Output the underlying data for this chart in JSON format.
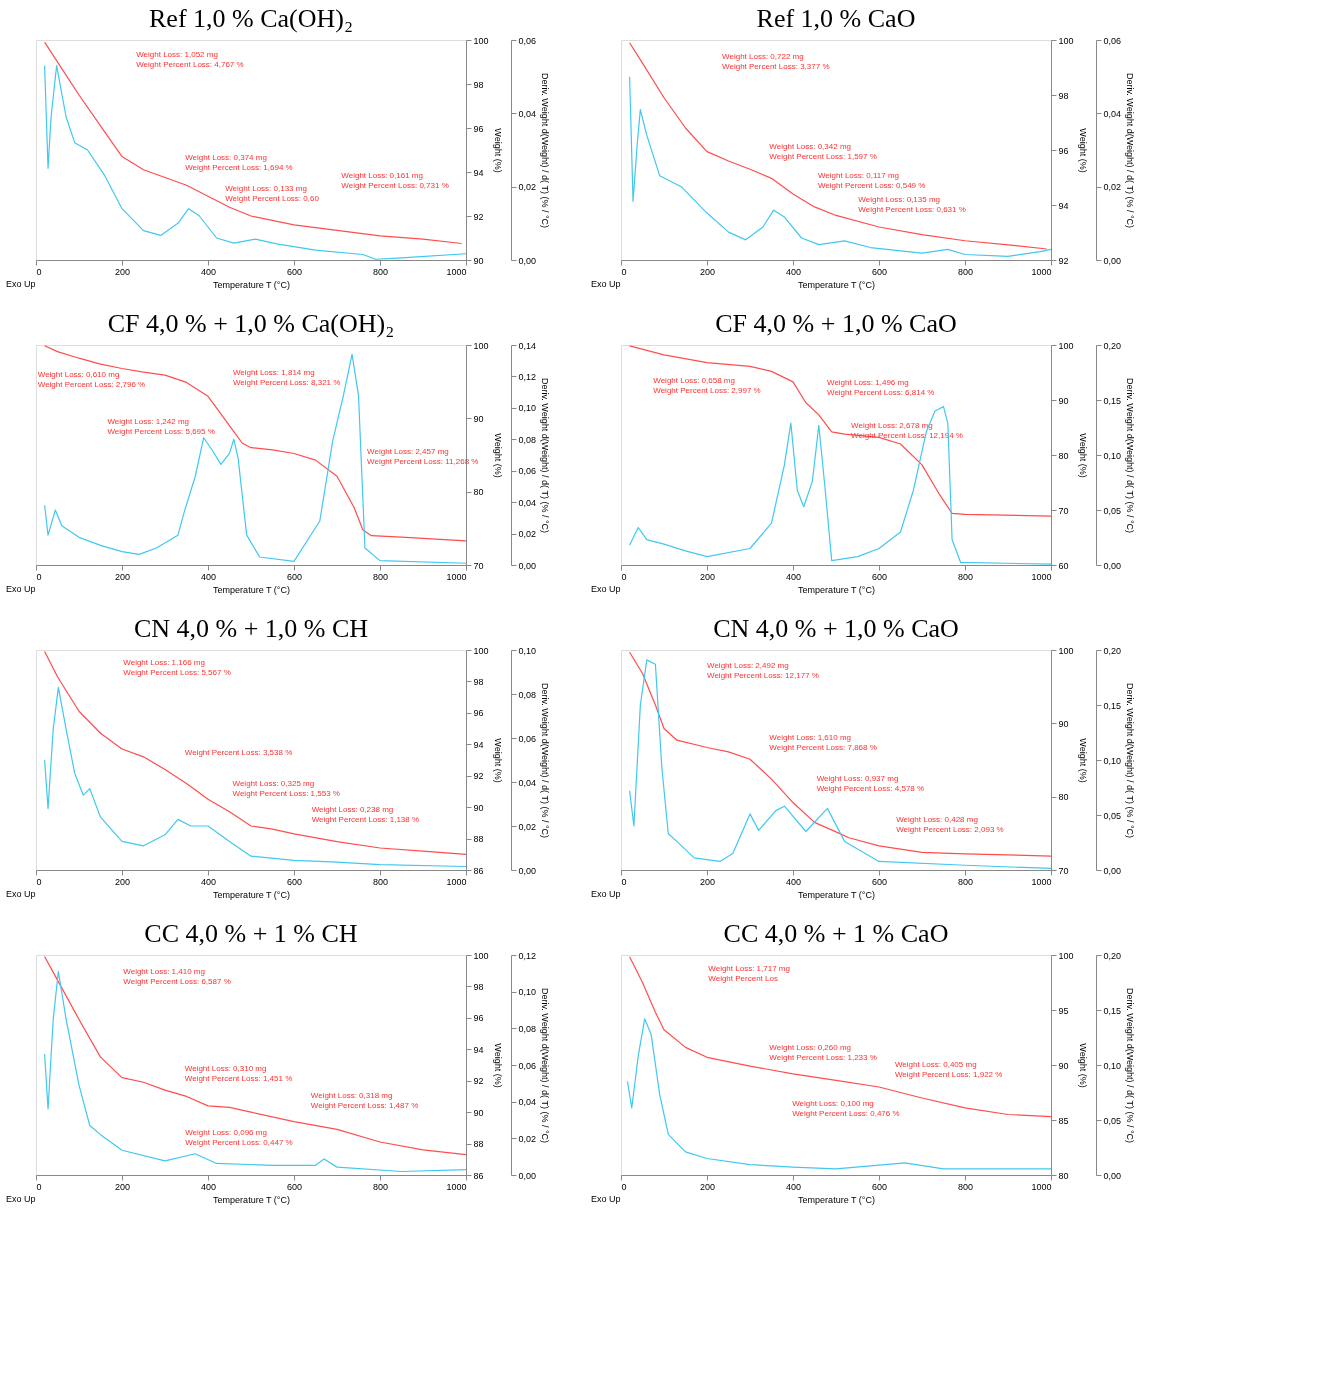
{
  "chart_data": [
    {
      "type": "line",
      "title": "Ref 1,0 % Ca(OH)₂",
      "xlabel": "Temperature T (°C)",
      "ylabel": "Weight (%)",
      "y2label": "Deriv. Weight d(Weight) / d( T) (% / °C)",
      "xlim": [
        0,
        1000
      ],
      "xticks": [
        0,
        200,
        400,
        600,
        800,
        1000
      ],
      "ylim": [
        90,
        100
      ],
      "yticks": [
        90,
        92,
        94,
        96,
        98,
        100
      ],
      "y2lim": [
        0,
        0.06
      ],
      "y2ticks": [
        {
          "value": 0,
          "label": "0,00"
        },
        {
          "value": 0.02,
          "label": "0,02"
        },
        {
          "value": 0.04,
          "label": "0,04"
        },
        {
          "value": 0.06,
          "label": "0,06"
        }
      ],
      "annotations": [
        "Weight Loss: 1,052 mg\nWeight Percent Loss: 4,767 %",
        "Weight Loss: 0,374 mg\nWeight Percent Loss: 1,694 %",
        "Weight Loss: 0,133 mg\nWeight Percent Loss: 0,60",
        "Weight Loss: 0,161 mg\nWeight Percent Loss: 0,731 %",
        "Exo Up"
      ],
      "series": [
        {
          "color": "#ff4d4d",
          "x": [
            20,
            60,
            100,
            150,
            200,
            250,
            300,
            350,
            400,
            450,
            500,
            600,
            700,
            800,
            900,
            990
          ],
          "values": [
            99.9,
            98.7,
            97.5,
            96.1,
            94.7,
            94.1,
            93.75,
            93.4,
            92.9,
            92.4,
            92.0,
            91.6,
            91.35,
            91.1,
            90.95,
            90.75
          ]
        },
        {
          "color": "#40c8f0",
          "axis": "y2",
          "x": [
            20,
            28,
            35,
            48,
            70,
            90,
            120,
            160,
            200,
            250,
            290,
            330,
            355,
            380,
            420,
            460,
            510,
            560,
            650,
            760,
            790,
            850,
            1000
          ],
          "values": [
            0.053,
            0.025,
            0.039,
            0.053,
            0.039,
            0.032,
            0.03,
            0.023,
            0.014,
            0.008,
            0.0067,
            0.01,
            0.014,
            0.012,
            0.006,
            0.0046,
            0.0057,
            0.0044,
            0.0027,
            0.0015,
            0.0002,
            0.0006,
            0.0017
          ]
        }
      ]
    },
    {
      "type": "line",
      "title": "Ref 1,0 % CaO",
      "xlabel": "Temperature T (°C)",
      "ylabel": "Weight (%)",
      "y2label": "Deriv. Weight d(Weight) / d( T) (% / °C)",
      "xlim": [
        0,
        1000
      ],
      "xticks": [
        0,
        200,
        400,
        600,
        800,
        1000
      ],
      "ylim": [
        92,
        100
      ],
      "yticks": [
        92,
        94,
        96,
        98,
        100
      ],
      "y2lim": [
        0,
        0.06
      ],
      "y2ticks": [
        {
          "value": 0,
          "label": "0,00"
        },
        {
          "value": 0.02,
          "label": "0,02"
        },
        {
          "value": 0.04,
          "label": "0,04"
        },
        {
          "value": 0.06,
          "label": "0,06"
        }
      ],
      "annotations": [
        "Weight Loss: 0,722 mg\nWeight Percent Loss: 3,377 %",
        "Weight Loss: 0,342 mg\nWeight Percent Loss: 1,597 %",
        "Weight Loss: 0,117 mg\nWeight Percent Loss: 0,549 %",
        "Weight Loss: 0,135 mg\nWeight Percent Loss: 0,631 %",
        "Exo Up"
      ],
      "series": [
        {
          "color": "#ff4d4d",
          "x": [
            20,
            50,
            100,
            150,
            200,
            250,
            300,
            350,
            400,
            450,
            500,
            600,
            700,
            800,
            900,
            990
          ],
          "values": [
            99.9,
            99.16,
            97.9,
            96.8,
            95.94,
            95.6,
            95.3,
            94.97,
            94.4,
            93.93,
            93.62,
            93.2,
            92.92,
            92.7,
            92.55,
            92.4
          ]
        },
        {
          "color": "#40c8f0",
          "axis": "y2",
          "x": [
            20,
            28,
            38,
            45,
            60,
            90,
            140,
            200,
            250,
            290,
            330,
            355,
            380,
            420,
            460,
            520,
            580,
            700,
            760,
            800,
            900,
            975,
            1000
          ],
          "values": [
            0.05,
            0.016,
            0.032,
            0.041,
            0.034,
            0.023,
            0.02,
            0.0128,
            0.0076,
            0.0055,
            0.009,
            0.0136,
            0.0117,
            0.006,
            0.0042,
            0.0052,
            0.0034,
            0.0019,
            0.0029,
            0.0015,
            0.001,
            0.0023,
            0.0029
          ]
        }
      ]
    },
    {
      "type": "line",
      "title": "CF 4,0 % + 1,0 % Ca(OH)₂",
      "xlabel": "Temperature T (°C)",
      "ylabel": "Weight (%)",
      "y2label": "Deriv. Weight d(Weight) / d( T) (% / °C)",
      "xlim": [
        0,
        1000
      ],
      "xticks": [
        0,
        200,
        400,
        600,
        800,
        1000
      ],
      "ylim": [
        70,
        100
      ],
      "yticks": [
        70,
        80,
        90,
        100
      ],
      "y2lim": [
        0,
        0.14
      ],
      "y2ticks": [
        {
          "value": 0,
          "label": "0,00"
        },
        {
          "value": 0.02,
          "label": "0,02"
        },
        {
          "value": 0.04,
          "label": "0,04"
        },
        {
          "value": 0.06,
          "label": "0,06"
        },
        {
          "value": 0.08,
          "label": "0,08"
        },
        {
          "value": 0.1,
          "label": "0,10"
        },
        {
          "value": 0.12,
          "label": "0,12"
        },
        {
          "value": 0.14,
          "label": "0,14"
        }
      ],
      "annotations": [
        "Weight Loss: 0,610 mg\nWeight Percent Loss: 2,796 %",
        "Weight Loss: 1,814 mg\nWeight Percent Loss: 8,321 %",
        "Weight Loss: 1,242 mg\nWeight Percent Loss: 5,695 %",
        "Weight Loss: 2,457 mg\nWeight Percent Loss: 11,268 %",
        "Exo Up"
      ],
      "series": [
        {
          "color": "#ff4d4d",
          "x": [
            20,
            50,
            100,
            150,
            200,
            250,
            300,
            350,
            400,
            430,
            460,
            480,
            500,
            550,
            600,
            650,
            700,
            740,
            760,
            780,
            850,
            1000
          ],
          "values": [
            99.9,
            99.1,
            98.2,
            97.4,
            96.8,
            96.3,
            95.9,
            94.9,
            93.0,
            90.6,
            88.2,
            86.6,
            86.0,
            85.7,
            85.2,
            84.3,
            82.1,
            77.8,
            74.8,
            74.0,
            73.8,
            73.3
          ]
        },
        {
          "color": "#40c8f0",
          "axis": "y2",
          "x": [
            20,
            28,
            45,
            60,
            100,
            150,
            200,
            240,
            280,
            330,
            345,
            370,
            390,
            410,
            430,
            450,
            460,
            470,
            490,
            520,
            600,
            660,
            690,
            715,
            735,
            750,
            765,
            800,
            1000
          ],
          "values": [
            0.038,
            0.019,
            0.035,
            0.025,
            0.0176,
            0.0125,
            0.0085,
            0.0068,
            0.0108,
            0.019,
            0.034,
            0.056,
            0.081,
            0.073,
            0.064,
            0.071,
            0.08,
            0.068,
            0.019,
            0.0051,
            0.0023,
            0.028,
            0.079,
            0.108,
            0.134,
            0.108,
            0.0108,
            0.0028,
            0.0011
          ]
        }
      ]
    },
    {
      "type": "line",
      "title": "CF 4,0 % + 1,0 % CaO",
      "xlabel": "Temperature T (°C)",
      "ylabel": "Weight (%)",
      "y2label": "Deriv. Weight d(Weight) / d( T) (% / °C)",
      "xlim": [
        0,
        1000
      ],
      "xticks": [
        0,
        200,
        400,
        600,
        800,
        1000
      ],
      "ylim": [
        60,
        100
      ],
      "yticks": [
        60,
        70,
        80,
        90,
        100
      ],
      "y2lim": [
        0,
        0.2
      ],
      "y2ticks": [
        {
          "value": 0,
          "label": "0,00"
        },
        {
          "value": 0.05,
          "label": "0,05"
        },
        {
          "value": 0.1,
          "label": "0,10"
        },
        {
          "value": 0.15,
          "label": "0,15"
        },
        {
          "value": 0.2,
          "label": "0,20"
        }
      ],
      "annotations": [
        "Weight Loss: 0,658 mg\nWeight Percent Loss: 2,997 %",
        "Weight Loss: 1,496 mg\nWeight Percent Loss: 6,814 %",
        "Weight Loss: 2,678 mg\nWeight Percent Loss: 12,194 %",
        "Exo Up"
      ],
      "series": [
        {
          "color": "#ff4d4d",
          "x": [
            20,
            100,
            200,
            300,
            350,
            400,
            430,
            460,
            490,
            520,
            600,
            650,
            700,
            740,
            770,
            800,
            1000
          ],
          "values": [
            99.85,
            98.2,
            96.8,
            96.1,
            95.2,
            93.3,
            89.5,
            87.3,
            84.2,
            83.8,
            83.2,
            82.0,
            78.2,
            72.9,
            69.4,
            69.2,
            68.9
          ]
        },
        {
          "color": "#40c8f0",
          "axis": "y2",
          "x": [
            20,
            40,
            60,
            100,
            150,
            200,
            300,
            350,
            380,
            395,
            410,
            425,
            445,
            460,
            475,
            490,
            550,
            600,
            650,
            680,
            710,
            730,
            740,
            750,
            760,
            770,
            790,
            1000
          ],
          "values": [
            0.018,
            0.034,
            0.023,
            0.019,
            0.0129,
            0.0076,
            0.015,
            0.038,
            0.091,
            0.129,
            0.068,
            0.053,
            0.076,
            0.127,
            0.068,
            0.004,
            0.0076,
            0.015,
            0.03,
            0.068,
            0.121,
            0.14,
            0.142,
            0.144,
            0.129,
            0.023,
            0.0023,
            0.0008
          ]
        }
      ]
    },
    {
      "type": "line",
      "title": "CN 4,0 % + 1,0 % CH",
      "xlabel": "Temperature T (°C)",
      "ylabel": "Weight (%)",
      "y2label": "Deriv. Weight d(Weight) / d( T) (% / °C)",
      "xlim": [
        0,
        1000
      ],
      "xticks": [
        0,
        200,
        400,
        600,
        800,
        1000
      ],
      "ylim": [
        86,
        100
      ],
      "yticks": [
        86,
        88,
        90,
        92,
        94,
        96,
        98,
        100
      ],
      "y2lim": [
        0,
        0.1
      ],
      "y2ticks": [
        {
          "value": 0,
          "label": "0,00"
        },
        {
          "value": 0.02,
          "label": "0,02"
        },
        {
          "value": 0.04,
          "label": "0,04"
        },
        {
          "value": 0.06,
          "label": "0,06"
        },
        {
          "value": 0.08,
          "label": "0,08"
        },
        {
          "value": 0.1,
          "label": "0,10"
        }
      ],
      "annotations": [
        "Weight Loss: 1,166 mg\nWeight Percent Loss: 5,567 %",
        "Weight Percent Loss: 3,538 %",
        "Weight Loss: 0,325 mg\nWeight Percent Loss: 1,553 %",
        "Weight Loss: 0,238 mg\nWeight Percent Loss: 1,138 %",
        "Exo Up"
      ],
      "series": [
        {
          "color": "#ff4d4d",
          "x": [
            20,
            50,
            100,
            150,
            200,
            250,
            300,
            350,
            400,
            450,
            500,
            550,
            600,
            700,
            800,
            900,
            1000
          ],
          "values": [
            99.9,
            98.3,
            96.1,
            94.7,
            93.7,
            93.2,
            92.4,
            91.5,
            90.5,
            89.7,
            88.8,
            88.6,
            88.3,
            87.8,
            87.4,
            87.2,
            87.0
          ]
        },
        {
          "color": "#40c8f0",
          "axis": "y2",
          "x": [
            20,
            28,
            40,
            52,
            70,
            90,
            110,
            125,
            150,
            200,
            250,
            300,
            330,
            360,
            400,
            450,
            500,
            600,
            700,
            800,
            1000
          ],
          "values": [
            0.05,
            0.028,
            0.064,
            0.083,
            0.064,
            0.044,
            0.034,
            0.037,
            0.024,
            0.013,
            0.011,
            0.016,
            0.023,
            0.02,
            0.02,
            0.013,
            0.0063,
            0.0044,
            0.0036,
            0.0024,
            0.0016
          ]
        }
      ]
    },
    {
      "type": "line",
      "title": "CN 4,0 % + 1,0 % CaO",
      "xlabel": "Temperature T (°C)",
      "ylabel": "Weight (%)",
      "y2label": "Deriv. Weight d(Weight) / d( T) (% / °C)",
      "xlim": [
        0,
        1000
      ],
      "xticks": [
        0,
        200,
        400,
        600,
        800,
        1000
      ],
      "ylim": [
        70,
        100
      ],
      "yticks": [
        70,
        80,
        90,
        100
      ],
      "y2lim": [
        0,
        0.2
      ],
      "y2ticks": [
        {
          "value": 0,
          "label": "0,00"
        },
        {
          "value": 0.05,
          "label": "0,05"
        },
        {
          "value": 0.1,
          "label": "0,10"
        },
        {
          "value": 0.15,
          "label": "0,15"
        },
        {
          "value": 0.2,
          "label": "0,20"
        }
      ],
      "annotations": [
        "Weight Loss: 2,492 mg\nWeight Percent Loss: 12,177 %",
        "Weight Loss: 1,610 mg\nWeight Percent Loss: 7,868 %",
        "Weight Loss: 0,937 mg\nWeight Percent Loss: 4,578 %",
        "Weight Loss: 0,428 mg\nWeight Percent Loss: 2,093 %",
        "Exo Up"
      ],
      "series": [
        {
          "color": "#ff4d4d",
          "x": [
            20,
            50,
            80,
            100,
            130,
            200,
            250,
            300,
            350,
            400,
            450,
            500,
            530,
            600,
            700,
            800,
            1000
          ],
          "values": [
            99.7,
            96.8,
            92.5,
            89.3,
            87.7,
            86.7,
            86.1,
            85.1,
            82.4,
            79.2,
            76.5,
            75.2,
            74.4,
            73.3,
            72.4,
            72.2,
            71.9
          ]
        },
        {
          "color": "#40c8f0",
          "axis": "y2",
          "x": [
            20,
            30,
            45,
            60,
            80,
            95,
            110,
            130,
            170,
            230,
            260,
            300,
            320,
            360,
            380,
            430,
            480,
            520,
            600,
            800,
            1000
          ],
          "values": [
            0.072,
            0.04,
            0.15,
            0.191,
            0.187,
            0.093,
            0.033,
            0.026,
            0.011,
            0.0078,
            0.015,
            0.051,
            0.036,
            0.054,
            0.058,
            0.035,
            0.056,
            0.026,
            0.0078,
            0.0043,
            0.0014
          ]
        }
      ]
    },
    {
      "type": "line",
      "title": "CC 4,0 % + 1 % CH",
      "xlabel": "Temperature T (°C)",
      "ylabel": "Weight (%)",
      "y2label": "Deriv. Weight d(Weight) / d( T) (% / °C)",
      "xlim": [
        0,
        1000
      ],
      "xticks": [
        0,
        200,
        400,
        600,
        800,
        1000
      ],
      "ylim": [
        86,
        100
      ],
      "yticks": [
        86,
        88,
        90,
        92,
        94,
        96,
        98,
        100
      ],
      "y2lim": [
        0,
        0.12
      ],
      "y2ticks": [
        {
          "value": 0,
          "label": "0,00"
        },
        {
          "value": 0.02,
          "label": "0,02"
        },
        {
          "value": 0.04,
          "label": "0,04"
        },
        {
          "value": 0.06,
          "label": "0,06"
        },
        {
          "value": 0.08,
          "label": "0,08"
        },
        {
          "value": 0.1,
          "label": "0,10"
        },
        {
          "value": 0.12,
          "label": "0,12"
        }
      ],
      "annotations": [
        "Weight Loss: 1,410 mg\nWeight Percent Loss: 6,587 %",
        "Weight Loss: 0,310 mg\nWeight Percent Loss: 1,451 %",
        "Weight Loss: 0,318 mg\nWeight Percent Loss: 1,487 %",
        "Weight Loss: 0,096 mg\nWeight Percent Loss: 0,447 %",
        "Exo Up"
      ],
      "series": [
        {
          "color": "#ff4d4d",
          "x": [
            20,
            50,
            100,
            150,
            200,
            250,
            300,
            350,
            400,
            450,
            500,
            600,
            700,
            800,
            900,
            1000
          ],
          "values": [
            99.9,
            98.4,
            95.9,
            93.5,
            92.2,
            91.9,
            91.4,
            91.0,
            90.4,
            90.3,
            90.0,
            89.4,
            88.9,
            88.1,
            87.6,
            87.3
          ]
        },
        {
          "color": "#40c8f0",
          "axis": "y2",
          "x": [
            20,
            28,
            40,
            52,
            70,
            100,
            125,
            150,
            200,
            300,
            370,
            420,
            550,
            650,
            670,
            700,
            850,
            1000
          ],
          "values": [
            0.066,
            0.036,
            0.085,
            0.111,
            0.085,
            0.049,
            0.027,
            0.022,
            0.0135,
            0.0077,
            0.0116,
            0.0063,
            0.0053,
            0.0053,
            0.0087,
            0.0043,
            0.0019,
            0.0029
          ]
        }
      ]
    },
    {
      "type": "line",
      "title": "CC 4,0 % + 1 % CaO",
      "xlabel": "Temperature T (°C)",
      "ylabel": "Weight (%)",
      "y2label": "Deriv. Weight d(Weight) / d( T) (% / °C)",
      "xlim": [
        0,
        1000
      ],
      "xticks": [
        0,
        200,
        400,
        600,
        800,
        1000
      ],
      "ylim": [
        80,
        100
      ],
      "yticks": [
        80,
        85,
        90,
        95,
        100
      ],
      "y2lim": [
        0,
        0.2
      ],
      "y2ticks": [
        {
          "value": 0,
          "label": "0,00"
        },
        {
          "value": 0.05,
          "label": "0,05"
        },
        {
          "value": 0.1,
          "label": "0,10"
        },
        {
          "value": 0.15,
          "label": "0,15"
        },
        {
          "value": 0.2,
          "label": "0,20"
        }
      ],
      "annotations": [
        "Weight Loss: 1,717 mg\nWeight Percent Los",
        "Weight Loss: 0,260 mg\nWeight Percent Loss: 1,233 %",
        "Weight Loss: 0,405 mg\nWeight Percent Loss: 1,922 %",
        "Weight Loss: 0,100 mg\nWeight Percent Loss: 0,476 %",
        "Exo Up"
      ],
      "series": [
        {
          "color": "#ff4d4d",
          "x": [
            20,
            50,
            80,
            100,
            150,
            200,
            300,
            400,
            500,
            600,
            700,
            800,
            900,
            1000
          ],
          "values": [
            99.85,
            97.5,
            94.8,
            93.2,
            91.6,
            90.7,
            89.9,
            89.2,
            88.6,
            88.0,
            87.0,
            86.1,
            85.5,
            85.3
          ]
        },
        {
          "color": "#40c8f0",
          "axis": "y2",
          "x": [
            15,
            25,
            40,
            55,
            70,
            90,
            110,
            150,
            200,
            300,
            400,
            500,
            660,
            750,
            1000
          ],
          "values": [
            0.085,
            0.061,
            0.108,
            0.142,
            0.128,
            0.073,
            0.037,
            0.021,
            0.015,
            0.0095,
            0.0071,
            0.0055,
            0.011,
            0.0055,
            0.0055
          ]
        }
      ]
    }
  ]
}
